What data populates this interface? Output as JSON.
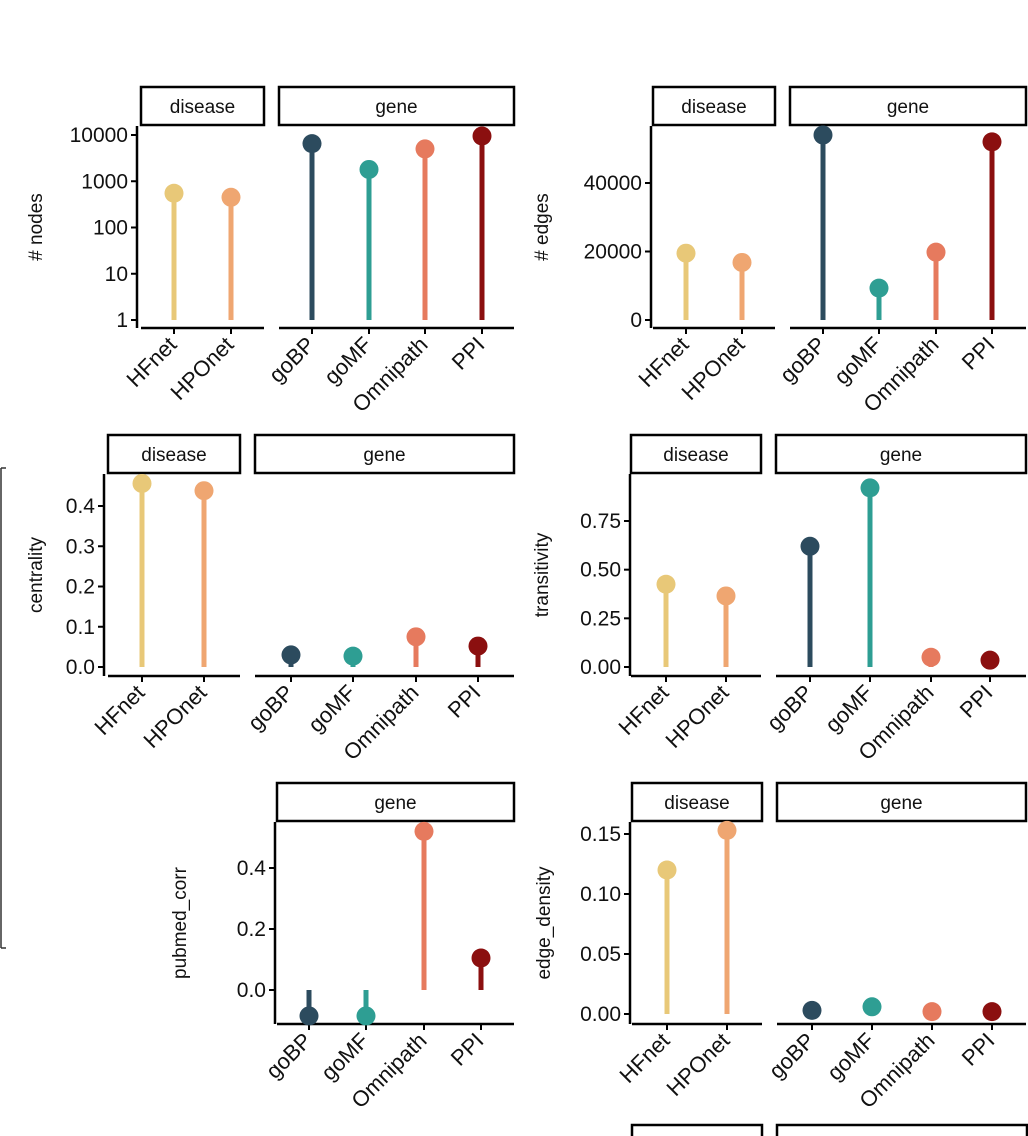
{
  "chart_data": [
    {
      "id": "nodes",
      "type": "lollipop",
      "y_scale": "log10",
      "ylabel": "# nodes",
      "ylim": [
        1,
        10000
      ],
      "yticks": [
        "1",
        "10",
        "100",
        "1000",
        "10000"
      ],
      "facets": [
        {
          "label": "disease",
          "categories": [
            "HFnet",
            "HPOnet"
          ],
          "values": [
            550,
            450
          ]
        },
        {
          "label": "gene",
          "categories": [
            "goBP",
            "goMF",
            "Omnipath",
            "PPI"
          ],
          "values": [
            6500,
            1800,
            5000,
            9500
          ]
        }
      ]
    },
    {
      "id": "edges",
      "type": "lollipop",
      "y_scale": "linear",
      "ylabel": "# edges",
      "ylim": [
        0,
        55000
      ],
      "yticks": [
        "0",
        "20000",
        "40000"
      ],
      "facets": [
        {
          "label": "disease",
          "categories": [
            "HFnet",
            "HPOnet"
          ],
          "values": [
            19500,
            16800
          ]
        },
        {
          "label": "gene",
          "categories": [
            "goBP",
            "goMF",
            "Omnipath",
            "PPI"
          ],
          "values": [
            54000,
            9300,
            19800,
            52000
          ]
        }
      ]
    },
    {
      "id": "centrality",
      "type": "lollipop",
      "y_scale": "linear",
      "ylabel": "centrality",
      "ylim": [
        0,
        0.46
      ],
      "yticks": [
        "0.0",
        "0.1",
        "0.2",
        "0.3",
        "0.4"
      ],
      "facets": [
        {
          "label": "disease",
          "categories": [
            "HFnet",
            "HPOnet"
          ],
          "values": [
            0.456,
            0.438
          ]
        },
        {
          "label": "gene",
          "categories": [
            "goBP",
            "goMF",
            "Omnipath",
            "PPI"
          ],
          "values": [
            0.03,
            0.027,
            0.075,
            0.052
          ]
        }
      ]
    },
    {
      "id": "transitivity",
      "type": "lollipop",
      "y_scale": "linear",
      "ylabel": "transitivity",
      "ylim": [
        0,
        0.95
      ],
      "yticks": [
        "0.00",
        "0.25",
        "0.50",
        "0.75"
      ],
      "facets": [
        {
          "label": "disease",
          "categories": [
            "HFnet",
            "HPOnet"
          ],
          "values": [
            0.425,
            0.365
          ]
        },
        {
          "label": "gene",
          "categories": [
            "goBP",
            "goMF",
            "Omnipath",
            "PPI"
          ],
          "values": [
            0.62,
            0.92,
            0.05,
            0.035
          ]
        }
      ]
    },
    {
      "id": "pubmed_corr",
      "type": "lollipop",
      "y_scale": "linear",
      "ylabel": "pubmed_corr",
      "ylim": [
        -0.11,
        0.55
      ],
      "yticks": [
        "0.0",
        "0.2",
        "0.4"
      ],
      "facets": [
        {
          "label": "gene",
          "categories": [
            "goBP",
            "goMF",
            "Omnipath",
            "PPI"
          ],
          "values": [
            -0.085,
            -0.085,
            0.52,
            0.105
          ]
        }
      ]
    },
    {
      "id": "edge_density",
      "type": "lollipop",
      "y_scale": "linear",
      "ylabel": "edge_density",
      "ylim": [
        0,
        0.16
      ],
      "yticks": [
        "0.00",
        "0.05",
        "0.10",
        "0.15"
      ],
      "facets": [
        {
          "label": "disease",
          "categories": [
            "HFnet",
            "HPOnet"
          ],
          "values": [
            0.12,
            0.153
          ]
        },
        {
          "label": "gene",
          "categories": [
            "goBP",
            "goMF",
            "Omnipath",
            "PPI"
          ],
          "values": [
            0.003,
            0.006,
            0.002,
            0.002
          ]
        }
      ]
    }
  ],
  "colors": {
    "HFnet": "#E8C878",
    "HPOnet": "#EFA671",
    "goBP": "#2C4B5E",
    "goMF": "#2E9E93",
    "Omnipath": "#E67A5E",
    "PPI": "#8B0F0F"
  }
}
